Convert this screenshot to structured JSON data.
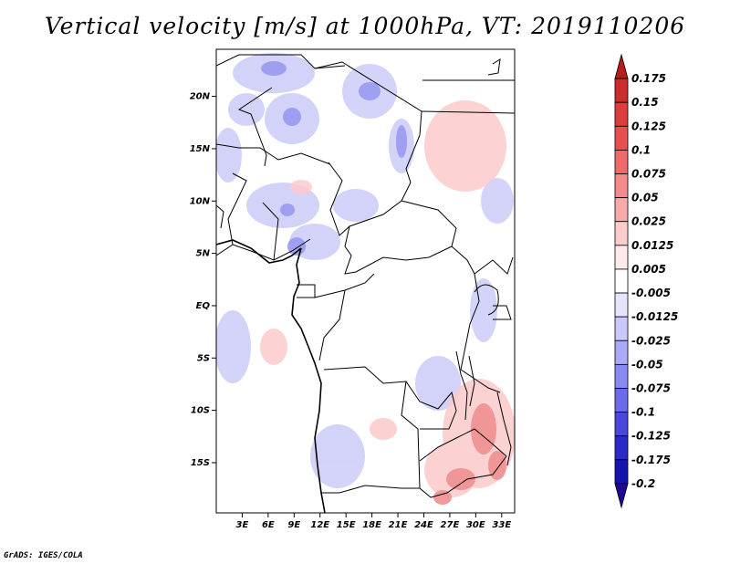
{
  "title": "Vertical velocity [m/s] at 1000hPa, VT: 2019110206",
  "credit": "GrADS: IGES/COLA",
  "map": {
    "lat_labels": [
      "20N",
      "15N",
      "10N",
      "5N",
      "EQ",
      "5S",
      "10S",
      "15S"
    ],
    "lat_values": [
      20,
      15,
      10,
      5,
      0,
      -5,
      -10,
      -15
    ],
    "lon_labels": [
      "3E",
      "6E",
      "9E",
      "12E",
      "15E",
      "18E",
      "21E",
      "24E",
      "27E",
      "30E",
      "33E"
    ],
    "lon_values": [
      3,
      6,
      9,
      12,
      15,
      18,
      21,
      24,
      27,
      30,
      33
    ],
    "lon_range": [
      0,
      34.5
    ],
    "lat_range": [
      -19.8,
      24.5
    ]
  },
  "colorbar": {
    "labels": [
      "0.175",
      "0.15",
      "0.125",
      "0.1",
      "0.075",
      "0.05",
      "0.025",
      "0.0125",
      "0.005",
      "-0.005",
      "-0.0125",
      "-0.025",
      "-0.05",
      "-0.075",
      "-0.1",
      "-0.125",
      "-0.175",
      "-0.2"
    ],
    "colors": [
      "#b41e1e",
      "#cc2c2c",
      "#dc3c3c",
      "#e65050",
      "#ee6a6a",
      "#f48a8a",
      "#f8aaaa",
      "#fccccc",
      "#feeaea",
      "#ffffff",
      "#e4e4fe",
      "#c8c8fc",
      "#aaaaf8",
      "#8a8af2",
      "#6a6aea",
      "#4848dc",
      "#2a2ac8",
      "#1414b0",
      "#1e0a96"
    ]
  }
}
